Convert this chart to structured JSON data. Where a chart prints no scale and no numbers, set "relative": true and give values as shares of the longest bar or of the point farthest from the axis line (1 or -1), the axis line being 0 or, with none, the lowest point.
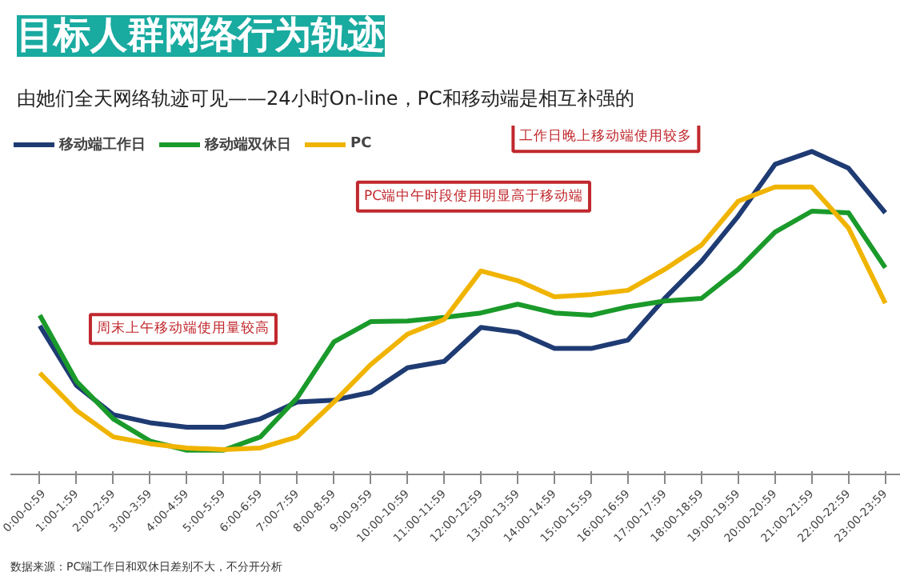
{
  "chart_data": {
    "type": "line",
    "title": "目标人群网络行为轨迹",
    "subtitle": "由她们全天网络轨迹可见——24小时On-line，PC和移动端是相互补强的",
    "relative": true,
    "legend": "top left",
    "grid": false,
    "categories": [
      "0:00-0:59",
      "1:00-1:59",
      "2:00-2:59",
      "3:00-3:59",
      "4:00-4:59",
      "5:00-5:59",
      "6:00-6:59",
      "7:00-7:59",
      "8:00-8:59",
      "9:00-9:59",
      "10:00-10:59",
      "11:00-11:59",
      "12:00-12:59",
      "13:00-13:59",
      "14:00-14:59",
      "15:00-15:59",
      "16:00-16:59",
      "17:00-17:59",
      "18:00-18:59",
      "19:00-19:59",
      "20:00-20:59",
      "21:00-21:59",
      "22:00-22:59",
      "23:00-23:59"
    ],
    "series": [
      {
        "name": "移动端工作日",
        "color": "#1f3b73",
        "values": [
          0.46,
          0.275,
          0.185,
          0.16,
          0.146,
          0.146,
          0.172,
          0.224,
          0.23,
          0.254,
          0.33,
          0.35,
          0.455,
          0.44,
          0.39,
          0.39,
          0.416,
          0.545,
          0.66,
          0.8,
          0.96,
          1.0,
          0.948,
          0.81
        ]
      },
      {
        "name": "移动端双休日",
        "color": "#1a9a2a",
        "values": [
          0.493,
          0.288,
          0.172,
          0.103,
          0.075,
          0.075,
          0.116,
          0.237,
          0.41,
          0.473,
          0.475,
          0.486,
          0.5,
          0.527,
          0.5,
          0.493,
          0.519,
          0.537,
          0.545,
          0.635,
          0.75,
          0.815,
          0.81,
          0.64
        ]
      },
      {
        "name": "PC",
        "color": "#f0b400",
        "values": [
          0.314,
          0.198,
          0.116,
          0.095,
          0.082,
          0.077,
          0.082,
          0.116,
          0.224,
          0.34,
          0.434,
          0.48,
          0.63,
          0.6,
          0.55,
          0.557,
          0.57,
          0.635,
          0.71,
          0.846,
          0.89,
          0.89,
          0.763,
          0.53
        ]
      }
    ],
    "annotations": [
      "周末上午移动端使用量较高",
      "PC端中午时段使用明显高于移动端",
      "工作日晚上移动端使用较多",
      "数据来源：PC端工作日和双休日差别不大，不分开分析"
    ]
  }
}
